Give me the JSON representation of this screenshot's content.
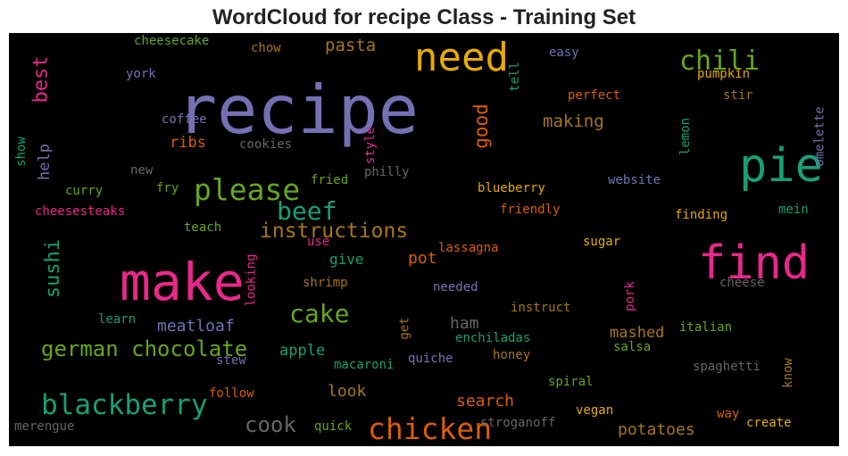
{
  "chart_data": {
    "type": "wordcloud",
    "title": "WordCloud for recipe Class - Training Set",
    "background": "#000000",
    "palette": [
      "#1b9e77",
      "#d95f02",
      "#7570b3",
      "#e7298a",
      "#66a61e",
      "#e6ab02",
      "#a6761d",
      "#666666"
    ],
    "words": [
      {
        "text": "recipe",
        "color": "#7570b3",
        "vertical": false
      },
      {
        "text": "make",
        "color": "#e7298a",
        "vertical": false
      },
      {
        "text": "find",
        "color": "#e7298a",
        "vertical": false
      },
      {
        "text": "pie",
        "color": "#1b9e77",
        "vertical": false
      },
      {
        "text": "need",
        "color": "#e6ab02",
        "vertical": false
      },
      {
        "text": "please",
        "color": "#66a61e",
        "vertical": false
      },
      {
        "text": "chicken",
        "color": "#d95f02",
        "vertical": false
      },
      {
        "text": "blackberry",
        "color": "#1b9e77",
        "vertical": false
      },
      {
        "text": "chili",
        "color": "#66a61e",
        "vertical": false
      },
      {
        "text": "beef",
        "color": "#1b9e77",
        "vertical": false
      },
      {
        "text": "cake",
        "color": "#66a61e",
        "vertical": false
      },
      {
        "text": "instructions",
        "color": "#a6761d",
        "vertical": false
      },
      {
        "text": "german chocolate",
        "color": "#66a61e",
        "vertical": false
      },
      {
        "text": "cook",
        "color": "#666666",
        "vertical": false
      },
      {
        "text": "good",
        "color": "#d95f02",
        "vertical": true
      },
      {
        "text": "best",
        "color": "#e7298a",
        "vertical": true
      },
      {
        "text": "sushi",
        "color": "#1b9e77",
        "vertical": true
      },
      {
        "text": "pasta",
        "color": "#a6761d",
        "vertical": false
      },
      {
        "text": "making",
        "color": "#a6761d",
        "vertical": false
      },
      {
        "text": "meatloaf",
        "color": "#7570b3",
        "vertical": false
      },
      {
        "text": "search",
        "color": "#d95f02",
        "vertical": false
      },
      {
        "text": "look",
        "color": "#a6761d",
        "vertical": false
      },
      {
        "text": "potatoes",
        "color": "#a6761d",
        "vertical": false
      },
      {
        "text": "mashed",
        "color": "#a6761d",
        "vertical": false
      },
      {
        "text": "ribs",
        "color": "#d95f02",
        "vertical": false
      },
      {
        "text": "apple",
        "color": "#1b9e77",
        "vertical": false
      },
      {
        "text": "ham",
        "color": "#666666",
        "vertical": false
      },
      {
        "text": "pot",
        "color": "#d95f02",
        "vertical": false
      },
      {
        "text": "give",
        "color": "#1b9e77",
        "vertical": false
      },
      {
        "text": "help",
        "color": "#7570b3",
        "vertical": true
      },
      {
        "text": "cheesecake",
        "color": "#66a61e",
        "vertical": false
      },
      {
        "text": "chow",
        "color": "#a6761d",
        "vertical": false
      },
      {
        "text": "easy",
        "color": "#7570b3",
        "vertical": false
      },
      {
        "text": "tell",
        "color": "#1b9e77",
        "vertical": true
      },
      {
        "text": "pumpkin",
        "color": "#e6ab02",
        "vertical": false
      },
      {
        "text": "stir",
        "color": "#a6761d",
        "vertical": false
      },
      {
        "text": "perfect",
        "color": "#d95f02",
        "vertical": false
      },
      {
        "text": "york",
        "color": "#7570b3",
        "vertical": false
      },
      {
        "text": "coffee",
        "color": "#7570b3",
        "vertical": false
      },
      {
        "text": "cookies",
        "color": "#666666",
        "vertical": false
      },
      {
        "text": "style",
        "color": "#e7298a",
        "vertical": true
      },
      {
        "text": "lemon",
        "color": "#1b9e77",
        "vertical": true
      },
      {
        "text": "omelette",
        "color": "#7570b3",
        "vertical": true
      },
      {
        "text": "show",
        "color": "#1b9e77",
        "vertical": true
      },
      {
        "text": "new",
        "color": "#666666",
        "vertical": false
      },
      {
        "text": "philly",
        "color": "#666666",
        "vertical": false
      },
      {
        "text": "fried",
        "color": "#66a61e",
        "vertical": false
      },
      {
        "text": "fry",
        "color": "#66a61e",
        "vertical": false
      },
      {
        "text": "curry",
        "color": "#66a61e",
        "vertical": false
      },
      {
        "text": "blueberry",
        "color": "#e6ab02",
        "vertical": false
      },
      {
        "text": "website",
        "color": "#7570b3",
        "vertical": false
      },
      {
        "text": "cheesesteaks",
        "color": "#e7298a",
        "vertical": false
      },
      {
        "text": "friendly",
        "color": "#d95f02",
        "vertical": false
      },
      {
        "text": "finding",
        "color": "#e6ab02",
        "vertical": false
      },
      {
        "text": "mein",
        "color": "#1b9e77",
        "vertical": false
      },
      {
        "text": "teach",
        "color": "#66a61e",
        "vertical": false
      },
      {
        "text": "use",
        "color": "#e7298a",
        "vertical": false
      },
      {
        "text": "lassagna",
        "color": "#d95f02",
        "vertical": false
      },
      {
        "text": "sugar",
        "color": "#e6ab02",
        "vertical": false
      },
      {
        "text": "looking",
        "color": "#e7298a",
        "vertical": true
      },
      {
        "text": "shrimp",
        "color": "#a6761d",
        "vertical": false
      },
      {
        "text": "needed",
        "color": "#7570b3",
        "vertical": false
      },
      {
        "text": "pork",
        "color": "#e7298a",
        "vertical": true
      },
      {
        "text": "cheese",
        "color": "#666666",
        "vertical": false
      },
      {
        "text": "instruct",
        "color": "#a6761d",
        "vertical": false
      },
      {
        "text": "learn",
        "color": "#1b9e77",
        "vertical": false
      },
      {
        "text": "get",
        "color": "#a6761d",
        "vertical": true
      },
      {
        "text": "enchiladas",
        "color": "#1b9e77",
        "vertical": false
      },
      {
        "text": "italian",
        "color": "#66a61e",
        "vertical": false
      },
      {
        "text": "salsa",
        "color": "#66a61e",
        "vertical": false
      },
      {
        "text": "stew",
        "color": "#7570b3",
        "vertical": false
      },
      {
        "text": "macaroni",
        "color": "#1b9e77",
        "vertical": false
      },
      {
        "text": "quiche",
        "color": "#7570b3",
        "vertical": false
      },
      {
        "text": "honey",
        "color": "#a6761d",
        "vertical": false
      },
      {
        "text": "spaghetti",
        "color": "#666666",
        "vertical": false
      },
      {
        "text": "know",
        "color": "#a6761d",
        "vertical": true
      },
      {
        "text": "follow",
        "color": "#d95f02",
        "vertical": false
      },
      {
        "text": "spiral",
        "color": "#66a61e",
        "vertical": false
      },
      {
        "text": "vegan",
        "color": "#e6ab02",
        "vertical": false
      },
      {
        "text": "way",
        "color": "#d95f02",
        "vertical": false
      },
      {
        "text": "create",
        "color": "#e6ab02",
        "vertical": false
      },
      {
        "text": "merengue",
        "color": "#666666",
        "vertical": false
      },
      {
        "text": "quick",
        "color": "#66a61e",
        "vertical": false
      },
      {
        "text": "stroganoff",
        "color": "#666666",
        "vertical": false
      }
    ]
  }
}
